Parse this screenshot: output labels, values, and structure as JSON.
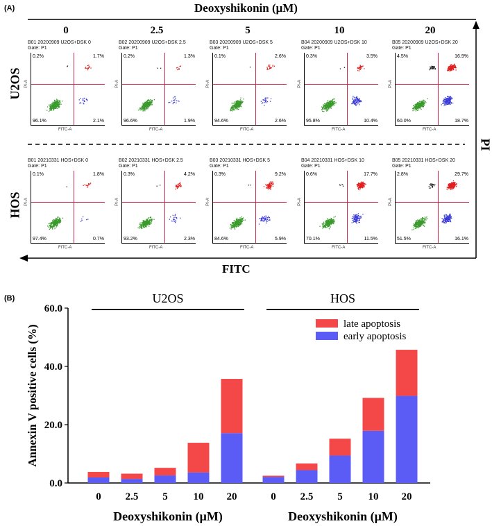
{
  "panelA": {
    "label": "(A)",
    "title": "Deoxyshikonin (μM)",
    "doses": [
      "0",
      "2.5",
      "5",
      "10",
      "20"
    ],
    "row_labels": [
      "U2OS",
      "HOS"
    ],
    "pi_label": "PI",
    "fitc_label": "FITC",
    "y_axis_text": "PI-A",
    "x_axis_text": "FITC-A",
    "plots": [
      {
        "header": "B01 20200909 U2OS+DSK 0",
        "gate": "Gate: P1",
        "ul": "0.2%",
        "ur": "1.7%",
        "ll": "96.1%",
        "lr": "2.1%"
      },
      {
        "header": "B02 20200909 U2OS+DSK 2.5",
        "gate": "Gate: P1",
        "ul": "0.2%",
        "ur": "1.3%",
        "ll": "96.6%",
        "lr": "1.9%"
      },
      {
        "header": "B03 20200909 U2OS+DSK 5",
        "gate": "Gate: P1",
        "ul": "0.1%",
        "ur": "2.6%",
        "ll": "94.6%",
        "lr": "2.6%"
      },
      {
        "header": "B04 20200909 U2OS+DSK 10",
        "gate": "Gate: P1",
        "ul": "0.3%",
        "ur": "3.5%",
        "ll": "95.8%",
        "lr": "10.4%"
      },
      {
        "header": "B05 20200909 U2OS+DSK 20",
        "gate": "Gate: P1",
        "ul": "4.5%",
        "ur": "16.9%",
        "ll": "60.0%",
        "lr": "18.7%"
      },
      {
        "header": "B01 20210331 HOS+DSK 0",
        "gate": "Gate: P1",
        "ul": "0.1%",
        "ur": "1.8%",
        "ll": "97.4%",
        "lr": "0.7%"
      },
      {
        "header": "B02 20210331 HOS+DSK 2.5",
        "gate": "Gate: P1",
        "ul": "0.3%",
        "ur": "4.2%",
        "ll": "93.2%",
        "lr": "2.3%"
      },
      {
        "header": "B03 20210331 HOS+DSK 5",
        "gate": "Gate: P1",
        "ul": "0.3%",
        "ur": "9.2%",
        "ll": "84.6%",
        "lr": "5.9%"
      },
      {
        "header": "B04 20210331 HOS+DSK 10",
        "gate": "Gate: P1",
        "ul": "0.6%",
        "ur": "17.7%",
        "ll": "70.1%",
        "lr": "11.5%"
      },
      {
        "header": "B05 20210331 HOS+DSK 20",
        "gate": "Gate: P1",
        "ul": "2.8%",
        "ur": "29.7%",
        "ll": "51.5%",
        "lr": "16.1%"
      }
    ]
  },
  "panelB": {
    "label": "(B)"
  },
  "chart_data": {
    "type": "bar",
    "stacked": true,
    "groups": [
      "U2OS",
      "HOS"
    ],
    "categories": [
      "0",
      "2.5",
      "5",
      "10",
      "20"
    ],
    "xlabel": "Deoxyshikonin (μM)",
    "ylabel": "Annexin V positive cells (%)",
    "ylim": [
      0,
      60
    ],
    "yticks": [
      "0.0",
      "20.0",
      "40.0",
      "60.0"
    ],
    "legend_position": "top-right",
    "series": [
      {
        "name": "early apoptosis",
        "color": "#5b5bf5",
        "values": {
          "U2OS": [
            1.9,
            1.4,
            2.6,
            3.6,
            17.1
          ],
          "HOS": [
            2.1,
            4.4,
            9.4,
            17.9,
            29.9
          ]
        }
      },
      {
        "name": "late apoptosis",
        "color": "#f44848",
        "values": {
          "U2OS": [
            1.9,
            1.8,
            2.6,
            10.2,
            18.6
          ],
          "HOS": [
            0.4,
            2.3,
            5.8,
            11.3,
            15.8
          ]
        }
      }
    ]
  }
}
